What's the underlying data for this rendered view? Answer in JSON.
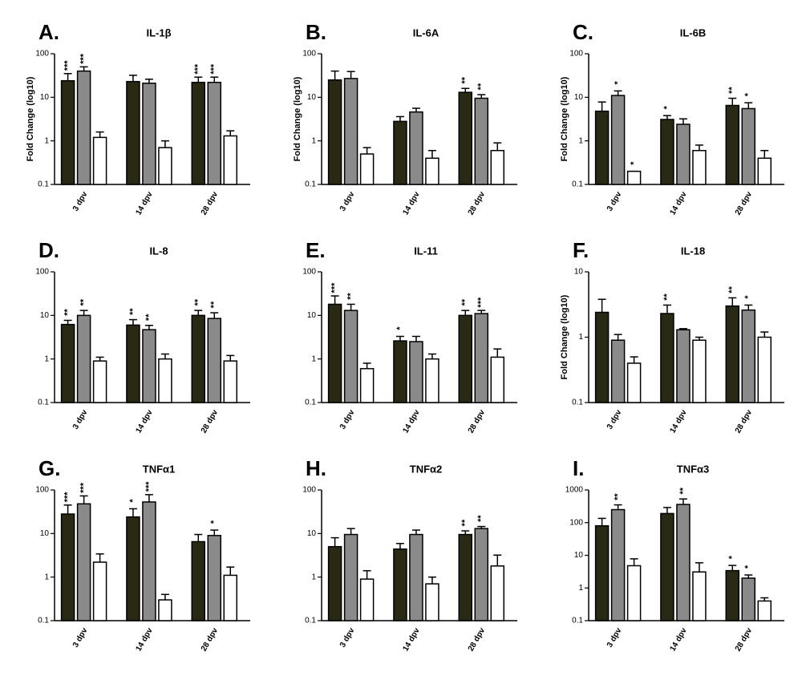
{
  "chart_data": [
    {
      "type": "bar",
      "letter": "A.",
      "title": "IL-1β",
      "ylabel": "Fold Change (log10)",
      "log_scale": true,
      "ylim": [
        0.1,
        100
      ],
      "yticks": [
        0.1,
        1,
        10,
        100
      ],
      "categories": [
        "3 dpv",
        "14 dpv",
        "28 dpv"
      ],
      "series": [
        {
          "color": "#2a2a14",
          "values": [
            24,
            23,
            22
          ],
          "errors": [
            11,
            9,
            7
          ],
          "stars": [
            "***",
            null,
            "***"
          ]
        },
        {
          "color": "#8a8a8a",
          "values": [
            40,
            21,
            22
          ],
          "errors": [
            10,
            5,
            7
          ],
          "stars": [
            "***",
            null,
            "***"
          ]
        },
        {
          "color": "#ffffff",
          "values": [
            1.2,
            0.7,
            1.3
          ],
          "errors": [
            0.4,
            0.3,
            0.4
          ],
          "stars": [
            null,
            null,
            null
          ]
        }
      ]
    },
    {
      "type": "bar",
      "letter": "B.",
      "title": "IL-6A",
      "ylabel": "Fold Change (log10)",
      "log_scale": true,
      "ylim": [
        0.1,
        100
      ],
      "yticks": [
        0.1,
        1,
        10,
        100
      ],
      "categories": [
        "3 dpv",
        "14 dpv",
        "28 dpv"
      ],
      "series": [
        {
          "color": "#2a2a14",
          "values": [
            25,
            2.8,
            13
          ],
          "errors": [
            15,
            0.8,
            3
          ],
          "stars": [
            null,
            null,
            "**"
          ]
        },
        {
          "color": "#8a8a8a",
          "values": [
            27,
            4.6,
            9.5
          ],
          "errors": [
            12,
            1,
            2
          ],
          "stars": [
            null,
            null,
            "**"
          ]
        },
        {
          "color": "#ffffff",
          "values": [
            0.5,
            0.4,
            0.6
          ],
          "errors": [
            0.2,
            0.2,
            0.3
          ],
          "stars": [
            null,
            null,
            null
          ]
        }
      ]
    },
    {
      "type": "bar",
      "letter": "C.",
      "title": "IL-6B",
      "ylabel": "Fold Change (log10)",
      "log_scale": true,
      "ylim": [
        0.1,
        100
      ],
      "yticks": [
        0.1,
        1,
        10,
        100
      ],
      "categories": [
        "3 dpv",
        "14 dpv",
        "28 dpv"
      ],
      "series": [
        {
          "color": "#2a2a14",
          "values": [
            4.8,
            3.1,
            6.5
          ],
          "errors": [
            3,
            0.7,
            3
          ],
          "stars": [
            null,
            "*",
            "**"
          ]
        },
        {
          "color": "#8a8a8a",
          "values": [
            11,
            2.4,
            5.5
          ],
          "errors": [
            3,
            0.8,
            2
          ],
          "stars": [
            "*",
            null,
            "*"
          ]
        },
        {
          "color": "#ffffff",
          "values": [
            0.2,
            0.6,
            0.4
          ],
          "errors": [
            0,
            0.2,
            0.2
          ],
          "stars": [
            "*",
            null,
            null
          ]
        }
      ]
    },
    {
      "type": "bar",
      "letter": "D.",
      "title": "IL-8",
      "log_scale": true,
      "ylim": [
        0.1,
        100
      ],
      "yticks": [
        0.1,
        1,
        10,
        100
      ],
      "categories": [
        "3 dpv",
        "14 dpv",
        "28 dpv"
      ],
      "series": [
        {
          "color": "#2a2a14",
          "values": [
            6.2,
            6,
            10
          ],
          "errors": [
            1.5,
            2,
            3
          ],
          "stars": [
            "**",
            "**",
            "**"
          ]
        },
        {
          "color": "#8a8a8a",
          "values": [
            10,
            4.7,
            8.5
          ],
          "errors": [
            3,
            1.2,
            3
          ],
          "stars": [
            "**",
            "**",
            "**"
          ]
        },
        {
          "color": "#ffffff",
          "values": [
            0.9,
            1,
            0.9
          ],
          "errors": [
            0.2,
            0.3,
            0.3
          ],
          "stars": [
            null,
            null,
            null
          ]
        }
      ]
    },
    {
      "type": "bar",
      "letter": "E.",
      "title": "IL-11",
      "log_scale": true,
      "ylim": [
        0.1,
        100
      ],
      "yticks": [
        0.1,
        1,
        10,
        100
      ],
      "categories": [
        "3 dpv",
        "14 dpv",
        "28 dpv"
      ],
      "series": [
        {
          "color": "#2a2a14",
          "values": [
            18,
            2.6,
            10
          ],
          "errors": [
            10,
            0.7,
            3
          ],
          "stars": [
            "***",
            "*",
            "**"
          ]
        },
        {
          "color": "#8a8a8a",
          "values": [
            13,
            2.5,
            11
          ],
          "errors": [
            5,
            0.8,
            2
          ],
          "stars": [
            "**",
            null,
            "***"
          ]
        },
        {
          "color": "#ffffff",
          "values": [
            0.6,
            1,
            1.1
          ],
          "errors": [
            0.2,
            0.3,
            0.6
          ],
          "stars": [
            null,
            null,
            null
          ]
        }
      ]
    },
    {
      "type": "bar",
      "letter": "F.",
      "title": "IL-18",
      "ylabel": "Fold Change (log10)",
      "log_scale": true,
      "ylim": [
        0.1,
        10
      ],
      "yticks": [
        0.1,
        1,
        10
      ],
      "categories": [
        "3 dpv",
        "14 dpv",
        "28 dpv"
      ],
      "series": [
        {
          "color": "#2a2a14",
          "values": [
            2.4,
            2.3,
            3
          ],
          "errors": [
            1.4,
            0.8,
            1
          ],
          "stars": [
            null,
            "**",
            "**"
          ]
        },
        {
          "color": "#8a8a8a",
          "values": [
            0.9,
            1.3,
            2.6
          ],
          "errors": [
            0.2,
            0.05,
            0.5
          ],
          "stars": [
            null,
            null,
            "*"
          ]
        },
        {
          "color": "#ffffff",
          "values": [
            0.4,
            0.9,
            1
          ],
          "errors": [
            0.1,
            0.1,
            0.2
          ],
          "stars": [
            null,
            null,
            null
          ]
        }
      ]
    },
    {
      "type": "bar",
      "letter": "G.",
      "title": "TNFα1",
      "log_scale": true,
      "ylim": [
        0.1,
        100
      ],
      "yticks": [
        0.1,
        1,
        10,
        100
      ],
      "categories": [
        "3 dpv",
        "14 dpv",
        "28 dpv"
      ],
      "series": [
        {
          "color": "#2a2a14",
          "values": [
            28,
            24,
            6.5
          ],
          "errors": [
            17,
            13,
            3
          ],
          "stars": [
            "***",
            "*",
            null
          ]
        },
        {
          "color": "#8a8a8a",
          "values": [
            48,
            53,
            9
          ],
          "errors": [
            25,
            25,
            3
          ],
          "stars": [
            "***",
            "***",
            "*"
          ]
        },
        {
          "color": "#ffffff",
          "values": [
            2.2,
            0.3,
            1.1
          ],
          "errors": [
            1.2,
            0.1,
            0.6
          ],
          "stars": [
            null,
            null,
            null
          ]
        }
      ]
    },
    {
      "type": "bar",
      "letter": "H.",
      "title": "TNFα2",
      "log_scale": true,
      "ylim": [
        0.1,
        100
      ],
      "yticks": [
        0.1,
        1,
        10,
        100
      ],
      "categories": [
        "3 dpv",
        "14 dpv",
        "28 dpv"
      ],
      "series": [
        {
          "color": "#2a2a14",
          "values": [
            5,
            4.4,
            9.5
          ],
          "errors": [
            3,
            1.5,
            2
          ],
          "stars": [
            null,
            null,
            "**"
          ]
        },
        {
          "color": "#8a8a8a",
          "values": [
            9.5,
            9.5,
            13
          ],
          "errors": [
            3.5,
            2.5,
            1.5
          ],
          "stars": [
            null,
            null,
            "**"
          ]
        },
        {
          "color": "#ffffff",
          "values": [
            0.9,
            0.7,
            1.8
          ],
          "errors": [
            0.5,
            0.3,
            1.4
          ],
          "stars": [
            null,
            null,
            null
          ]
        }
      ]
    },
    {
      "type": "bar",
      "letter": "I.",
      "title": "TNFα3",
      "log_scale": true,
      "ylim": [
        0.1,
        1000
      ],
      "yticks": [
        0.1,
        1,
        10,
        100,
        1000
      ],
      "categories": [
        "3 dpv",
        "14 dpv",
        "28 dpv"
      ],
      "series": [
        {
          "color": "#2a2a14",
          "values": [
            80,
            190,
            3.4
          ],
          "errors": [
            55,
            100,
            1.5
          ],
          "stars": [
            null,
            null,
            "*"
          ]
        },
        {
          "color": "#8a8a8a",
          "values": [
            250,
            360,
            2
          ],
          "errors": [
            100,
            170,
            0.5
          ],
          "stars": [
            "**",
            "**",
            "*"
          ]
        },
        {
          "color": "#ffffff",
          "values": [
            4.8,
            3.1,
            0.4
          ],
          "errors": [
            3,
            2.8,
            0.1
          ],
          "stars": [
            null,
            null,
            null
          ]
        }
      ]
    }
  ]
}
